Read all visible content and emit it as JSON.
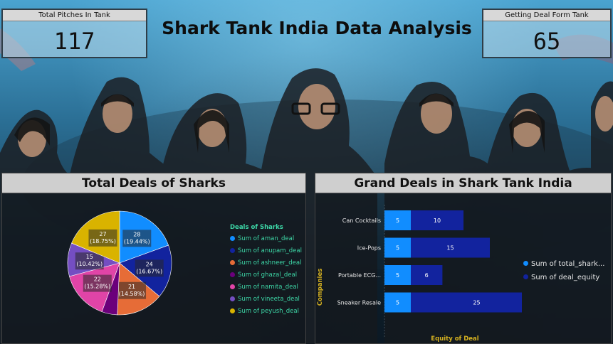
{
  "dashboard": {
    "title": "Shark Tank India Data Analysis",
    "kpis": {
      "total_pitches": {
        "label": "Total Pitches In Tank",
        "value": "117"
      },
      "getting_deal": {
        "label": "Getting Deal Form Tank",
        "value": "65"
      }
    }
  },
  "left_panel": {
    "title": "Total Deals of Sharks",
    "legend_title": "Deals of Sharks"
  },
  "right_panel": {
    "title": "Grand Deals in Shark Tank India",
    "y_axis_label": "Companies",
    "x_axis_label": "Equity of Deal"
  },
  "colors": {
    "aman": "#118dff",
    "anupam": "#12239e",
    "ashneer": "#e66c37",
    "ghazal": "#6b007b",
    "namita": "#e044a7",
    "vineeta": "#744ec2",
    "peyush": "#d9b300",
    "bar_light": "#118dff",
    "bar_dark": "#12239e"
  },
  "chart_data": [
    {
      "type": "pie",
      "title": "Total Deals of Sharks",
      "legend_title": "Deals of Sharks",
      "legend_position": "right",
      "slices": [
        {
          "name": "Sum of aman_deal",
          "value": 28,
          "label": "28\n(19.44%)",
          "color_key": "aman"
        },
        {
          "name": "Sum of anupam_deal",
          "value": 24,
          "label": "24\n(16.67%)",
          "color_key": "anupam"
        },
        {
          "name": "Sum of ashneer_deal",
          "value": 21,
          "label": "21\n(14.58%)",
          "color_key": "ashneer"
        },
        {
          "name": "Sum of ghazal_deal",
          "value": 7,
          "label": "",
          "color_key": "ghazal"
        },
        {
          "name": "Sum of namita_deal",
          "value": 22,
          "label": "22\n(15.28%)",
          "color_key": "namita"
        },
        {
          "name": "Sum of vineeta_deal",
          "value": 15,
          "label": "15\n(10.42%)",
          "color_key": "vineeta"
        },
        {
          "name": "Sum of peyush_deal",
          "value": 27,
          "label": "27\n(18.75%)",
          "color_key": "peyush"
        }
      ]
    },
    {
      "type": "bar",
      "orientation": "horizontal",
      "stacked": true,
      "title": "Grand Deals in Shark Tank India",
      "ylabel": "Companies",
      "xlabel": "Equity of Deal",
      "legend_position": "right",
      "categories": [
        "Can Cocktails",
        "Ice-Pops",
        "Portable ECG...",
        "Sneaker Resale"
      ],
      "series": [
        {
          "name": "Sum of total_shark...",
          "values": [
            5,
            5,
            5,
            5
          ],
          "color_key": "bar_light"
        },
        {
          "name": "Sum of deal_equity",
          "values": [
            10,
            15,
            6,
            25
          ],
          "color_key": "bar_dark"
        }
      ],
      "xlim": [
        0,
        30
      ]
    }
  ]
}
